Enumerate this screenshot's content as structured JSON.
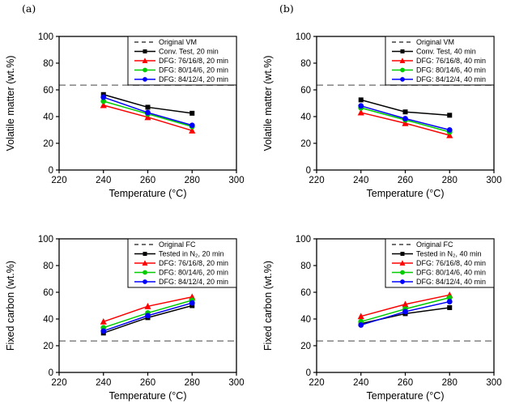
{
  "figure": {
    "background": "#ffffff",
    "panel_labels": [
      "(a)",
      "(b)"
    ]
  },
  "colors": {
    "black": "#000000",
    "red": "#ff0000",
    "green": "#00cc00",
    "blue": "#0000ff",
    "ref_dash_gray": "#8c8c8c"
  },
  "chart_data": [
    {
      "panel_label": "(a)",
      "type": "line",
      "title": "",
      "xlabel": "Temperature (°C)",
      "ylabel": "Volatile matter (wt.%)",
      "x": [
        240,
        260,
        280
      ],
      "xlim": [
        220,
        300
      ],
      "xticks": [
        220,
        240,
        260,
        280,
        300
      ],
      "ylim": [
        0,
        100
      ],
      "yticks": [
        0,
        20,
        40,
        60,
        80,
        100
      ],
      "grid": false,
      "legend_position": "top-right",
      "ref_line": {
        "label": "Original VM",
        "value": 63.5,
        "color": "#8c8c8c",
        "style": "dashed"
      },
      "series": [
        {
          "name": "Conv. Test, 20 min",
          "color": "#000000",
          "marker": "square",
          "values": [
            56.5,
            47.0,
            42.5
          ]
        },
        {
          "name": "DFG: 76/16/8, 20 min",
          "color": "#ff0000",
          "marker": "triangle",
          "values": [
            48.5,
            39.5,
            29.5
          ]
        },
        {
          "name": "DFG: 80/14/6, 20 min",
          "color": "#00cc00",
          "marker": "circle",
          "values": [
            51.5,
            42.0,
            32.5
          ]
        },
        {
          "name": "DFG: 84/12/4, 20 min",
          "color": "#0000ff",
          "marker": "circle",
          "values": [
            54.5,
            43.0,
            33.5
          ]
        }
      ]
    },
    {
      "panel_label": "(b)",
      "type": "line",
      "title": "",
      "xlabel": "Temperature (°C)",
      "ylabel": "Volatile matter (wt.%)",
      "x": [
        240,
        260,
        280
      ],
      "xlim": [
        220,
        300
      ],
      "xticks": [
        220,
        240,
        260,
        280,
        300
      ],
      "ylim": [
        0,
        100
      ],
      "yticks": [
        0,
        20,
        40,
        60,
        80,
        100
      ],
      "grid": false,
      "legend_position": "top-right",
      "ref_line": {
        "label": "Original VM",
        "value": 63.5,
        "color": "#8c8c8c",
        "style": "dashed"
      },
      "series": [
        {
          "name": "Conv. Test, 40 min",
          "color": "#000000",
          "marker": "square",
          "values": [
            52.5,
            43.5,
            41.0
          ]
        },
        {
          "name": "DFG: 76/16/8, 40 min",
          "color": "#ff0000",
          "marker": "triangle",
          "values": [
            43.0,
            35.0,
            26.0
          ]
        },
        {
          "name": "DFG: 80/14/6, 40 min",
          "color": "#00cc00",
          "marker": "circle",
          "values": [
            46.5,
            37.5,
            28.5
          ]
        },
        {
          "name": "DFG: 84/12/4, 40 min",
          "color": "#0000ff",
          "marker": "circle",
          "values": [
            48.0,
            38.5,
            30.0
          ]
        }
      ]
    },
    {
      "panel_label": "",
      "type": "line",
      "title": "",
      "xlabel": "Temperature (°C)",
      "ylabel": "Fixed carbon (wt.%)",
      "x": [
        240,
        260,
        280
      ],
      "xlim": [
        220,
        300
      ],
      "xticks": [
        220,
        240,
        260,
        280,
        300
      ],
      "ylim": [
        0,
        100
      ],
      "yticks": [
        0,
        20,
        40,
        60,
        80,
        100
      ],
      "grid": false,
      "legend_position": "top-right",
      "ref_line": {
        "label": "Original FC",
        "value": 23.5,
        "color": "#8c8c8c",
        "style": "dashed"
      },
      "series": [
        {
          "name": "Tested in N₂, 20 min",
          "color": "#000000",
          "marker": "square",
          "values": [
            29.5,
            41.0,
            50.0
          ]
        },
        {
          "name": "DFG: 76/16/8, 20 min",
          "color": "#ff0000",
          "marker": "triangle",
          "values": [
            38.0,
            49.5,
            56.5
          ]
        },
        {
          "name": "DFG: 80/14/6, 20 min",
          "color": "#00cc00",
          "marker": "circle",
          "values": [
            33.5,
            44.5,
            54.0
          ]
        },
        {
          "name": "DFG: 84/12/4, 20 min",
          "color": "#0000ff",
          "marker": "circle",
          "values": [
            31.0,
            42.5,
            52.0
          ]
        }
      ]
    },
    {
      "panel_label": "",
      "type": "line",
      "title": "",
      "xlabel": "Temperature (°C)",
      "ylabel": "Fixed carbon (wt.%)",
      "x": [
        240,
        260,
        280
      ],
      "xlim": [
        220,
        300
      ],
      "xticks": [
        220,
        240,
        260,
        280,
        300
      ],
      "ylim": [
        0,
        100
      ],
      "yticks": [
        0,
        20,
        40,
        60,
        80,
        100
      ],
      "grid": false,
      "legend_position": "top-right",
      "ref_line": {
        "label": "Original FC",
        "value": 23.5,
        "color": "#8c8c8c",
        "style": "dashed"
      },
      "series": [
        {
          "name": "Tested in N₂, 40 min",
          "color": "#000000",
          "marker": "square",
          "values": [
            36.5,
            44.0,
            48.5
          ]
        },
        {
          "name": "DFG: 76/16/8, 40 min",
          "color": "#ff0000",
          "marker": "triangle",
          "values": [
            42.0,
            51.0,
            58.0
          ]
        },
        {
          "name": "DFG: 80/14/6, 40 min",
          "color": "#00cc00",
          "marker": "circle",
          "values": [
            38.0,
            47.5,
            56.0
          ]
        },
        {
          "name": "DFG: 84/12/4, 40 min",
          "color": "#0000ff",
          "marker": "circle",
          "values": [
            35.5,
            45.5,
            53.0
          ]
        }
      ]
    }
  ]
}
